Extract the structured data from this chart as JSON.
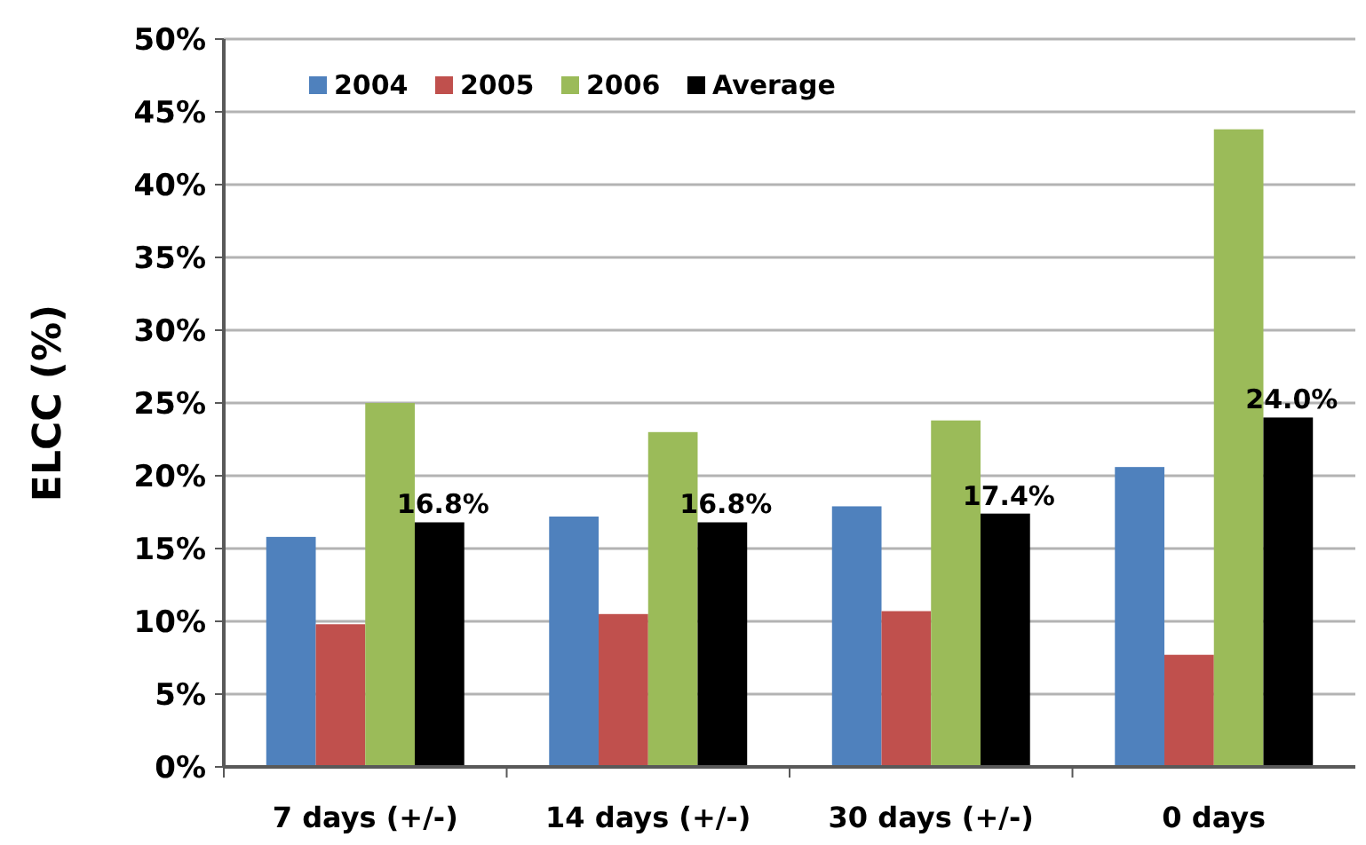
{
  "chart_data": {
    "type": "bar",
    "ylabel": "ELCC (%)",
    "categories": [
      "7 days (+/-)",
      "14 days (+/-)",
      "30 days (+/-)",
      "0 days"
    ],
    "series": [
      {
        "name": "2004",
        "color": "#4f81bd",
        "values": [
          15.8,
          17.2,
          17.9,
          20.6
        ]
      },
      {
        "name": "2005",
        "color": "#c0504d",
        "values": [
          9.8,
          10.5,
          10.7,
          7.7
        ]
      },
      {
        "name": "2006",
        "color": "#9bbb59",
        "values": [
          25.0,
          23.0,
          23.8,
          43.8
        ]
      },
      {
        "name": "Average",
        "color": "#000000",
        "values": [
          16.8,
          16.8,
          17.4,
          24.0
        ],
        "value_labels": [
          "16.8%",
          "16.8%",
          "17.4%",
          "24.0%"
        ]
      }
    ],
    "ylim": [
      0,
      50
    ],
    "yticks": [
      {
        "value": 0,
        "label": "0%"
      },
      {
        "value": 5,
        "label": "5%"
      },
      {
        "value": 10,
        "label": "10%"
      },
      {
        "value": 15,
        "label": "15%"
      },
      {
        "value": 20,
        "label": "20%"
      },
      {
        "value": 25,
        "label": "25%"
      },
      {
        "value": 30,
        "label": "30%"
      },
      {
        "value": 35,
        "label": "35%"
      },
      {
        "value": 40,
        "label": "40%"
      },
      {
        "value": 45,
        "label": "45%"
      },
      {
        "value": 50,
        "label": "50%"
      }
    ],
    "grid": "y",
    "legend": "top left"
  }
}
